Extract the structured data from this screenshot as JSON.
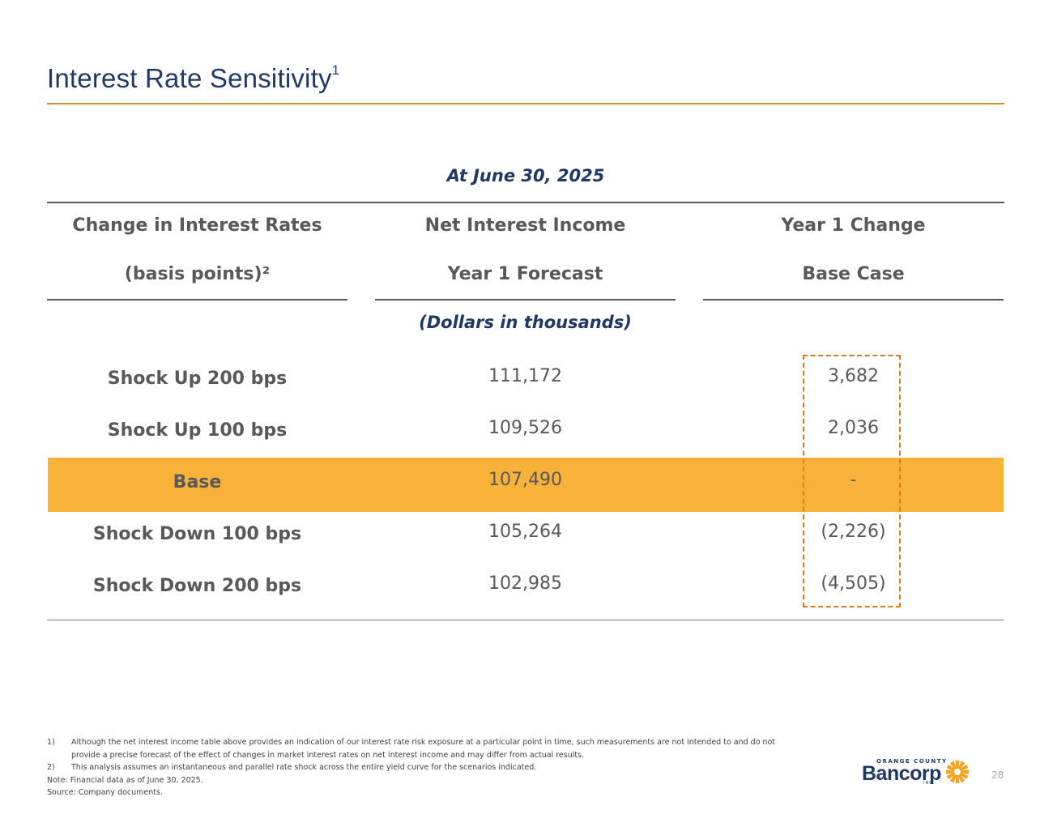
{
  "slide": {
    "title": "Interest Rate Sensitivity",
    "title_sup": "1",
    "date_label": "At June 30, 2025",
    "units_label": "(Dollars in thousands)",
    "page_number": "28"
  },
  "table": {
    "headers": [
      {
        "line1": "Change in Interest Rates",
        "line2": "(basis points)²"
      },
      {
        "line1": "Net Interest Income",
        "line2": "Year 1 Forecast"
      },
      {
        "line1": "Year 1 Change",
        "line2": "Base Case"
      }
    ],
    "rows": [
      {
        "label": "Shock Up 200 bps",
        "forecast": "111,172",
        "change": "3,682"
      },
      {
        "label": "Shock Up 100 bps",
        "forecast": "109,526",
        "change": "2,036"
      },
      {
        "label": "Base",
        "forecast": "107,490",
        "change": "-"
      },
      {
        "label": "Shock Down 100 bps",
        "forecast": "105,264",
        "change": "(2,226)"
      },
      {
        "label": "Shock Down 200 bps",
        "forecast": "102,985",
        "change": "(4,505)"
      }
    ]
  },
  "footnotes": [
    {
      "num": "1)",
      "text": "Although the net interest income table above provides an indication of our interest rate risk exposure at a particular point in time, such measurements are not intended to and do not provide a precise forecast of the effect of changes in market interest rates on net interest income and may differ from actual results."
    },
    {
      "num": "2)",
      "text": "This analysis assumes an instantaneous and parallel rate shock across the entire yield curve for the scenarios indicated."
    }
  ],
  "note": "Note: Financial data as of June 30, 2025.",
  "source": "Source: Company documents.",
  "logo": {
    "top_text": "ORANGE COUNTY",
    "wordmark": "Bancorp",
    "inc_text": "INC"
  },
  "colors": {
    "title": "#1f3864",
    "accent_rule": "#e08a2c",
    "base_highlight": "#f8b23a",
    "dashed_box": "#e0781c"
  }
}
